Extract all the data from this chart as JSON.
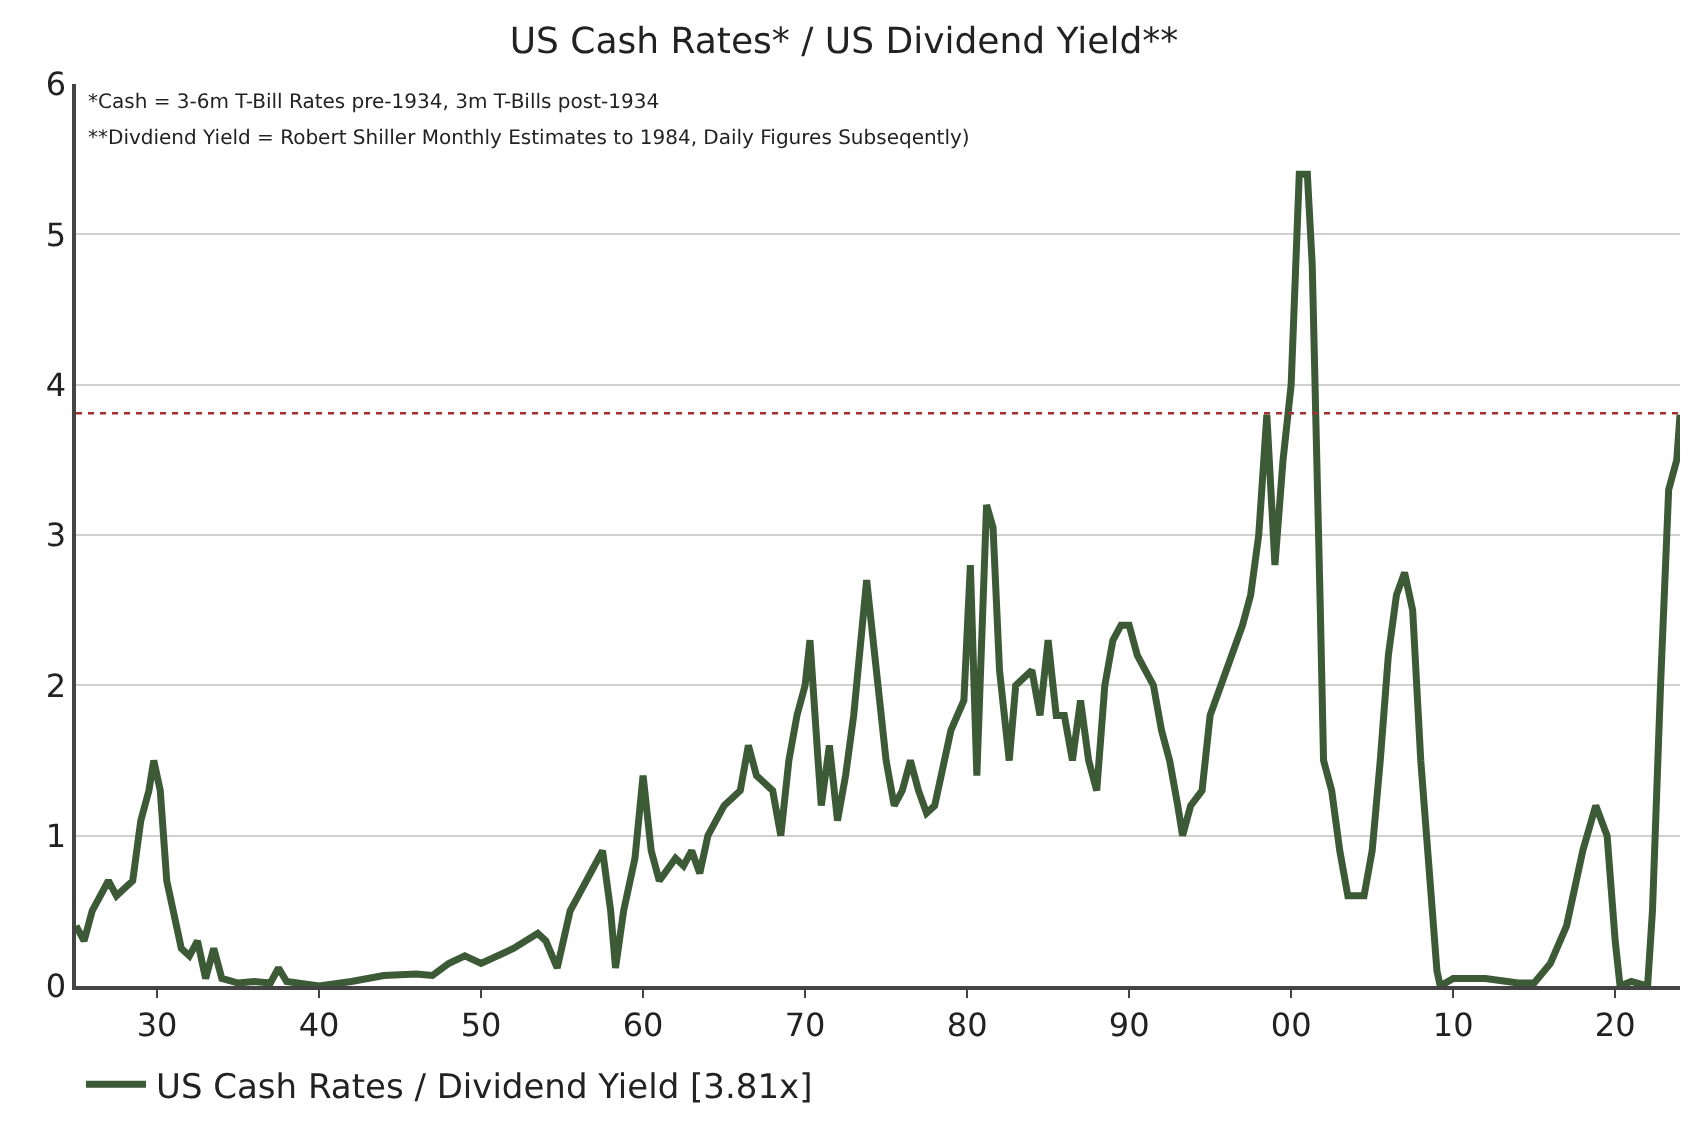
{
  "chart_data": {
    "type": "line",
    "title": "US Cash Rates* / US Dividend Yield**",
    "annotations": [
      "*Cash = 3-6m T-Bill Rates pre-1934, 3m T-Bills post-1934",
      "**Divdiend Yield = Robert Shiller Monthly Estimates to 1984, Daily Figures Subseqently)"
    ],
    "series": [
      {
        "name": "US Cash Rates / Dividend Yield [3.81x]",
        "color": "#3d5a36",
        "x": [
          1925,
          1925.5,
          1926,
          1927,
          1927.5,
          1928,
          1928.5,
          1929,
          1929.5,
          1929.8,
          1930.2,
          1930.6,
          1931,
          1931.5,
          1932,
          1932.5,
          1933,
          1933.5,
          1934,
          1935,
          1936,
          1937,
          1937.5,
          1938,
          1940,
          1942,
          1944,
          1946,
          1947,
          1948,
          1949,
          1950,
          1952,
          1953.5,
          1954,
          1954.7,
          1955.5,
          1956,
          1957,
          1957.5,
          1958,
          1958.3,
          1958.8,
          1959.5,
          1960,
          1960.5,
          1961,
          1962,
          1962.5,
          1963,
          1963.5,
          1964,
          1965,
          1966,
          1966.5,
          1967,
          1968,
          1968.5,
          1969,
          1969.5,
          1970,
          1970.3,
          1970.8,
          1971,
          1971.5,
          1972,
          1972.5,
          1973,
          1973.8,
          1974.3,
          1975,
          1975.5,
          1976,
          1976.5,
          1977,
          1977.5,
          1978,
          1979,
          1979.8,
          1980.2,
          1980.6,
          1981.2,
          1981.6,
          1982,
          1982.6,
          1983,
          1984,
          1984.5,
          1985,
          1985.5,
          1986,
          1986.5,
          1987,
          1987.5,
          1988,
          1988.5,
          1989,
          1989.5,
          1990,
          1990.5,
          1991,
          1991.5,
          1992,
          1992.5,
          1993,
          1993.3,
          1993.8,
          1994.5,
          1995,
          1996,
          1997,
          1997.5,
          1998,
          1998.5,
          1999,
          1999.5,
          2000,
          2000.5,
          2001,
          2001.3,
          2001.8,
          2002,
          2002.5,
          2003,
          2003.5,
          2004.5,
          2005,
          2005.5,
          2006,
          2006.5,
          2007,
          2007.5,
          2008,
          2008.5,
          2009,
          2009.2,
          2010,
          2012,
          2014,
          2015,
          2016,
          2017,
          2018,
          2018.8,
          2019.5,
          2020,
          2020.3,
          2021,
          2022,
          2022.3,
          2022.8,
          2023.3,
          2023.8,
          2024
        ],
        "values": [
          0.4,
          0.3,
          0.5,
          0.7,
          0.6,
          0.65,
          0.7,
          1.1,
          1.3,
          1.5,
          1.3,
          0.7,
          0.5,
          0.25,
          0.2,
          0.3,
          0.05,
          0.25,
          0.05,
          0.02,
          0.03,
          0.02,
          0.12,
          0.03,
          0.0,
          0.03,
          0.07,
          0.08,
          0.07,
          0.15,
          0.2,
          0.15,
          0.25,
          0.35,
          0.3,
          0.12,
          0.5,
          0.6,
          0.8,
          0.9,
          0.5,
          0.12,
          0.5,
          0.85,
          1.4,
          0.9,
          0.7,
          0.85,
          0.8,
          0.9,
          0.75,
          1.0,
          1.2,
          1.3,
          1.6,
          1.4,
          1.3,
          1.0,
          1.5,
          1.8,
          2.0,
          2.3,
          1.5,
          1.2,
          1.6,
          1.1,
          1.4,
          1.8,
          2.7,
          2.2,
          1.5,
          1.2,
          1.3,
          1.5,
          1.3,
          1.15,
          1.2,
          1.7,
          1.9,
          2.8,
          1.4,
          3.2,
          3.05,
          2.1,
          1.5,
          2.0,
          2.1,
          1.8,
          2.3,
          1.8,
          1.8,
          1.5,
          1.9,
          1.5,
          1.3,
          2.0,
          2.3,
          2.4,
          2.4,
          2.2,
          2.1,
          2.0,
          1.7,
          1.5,
          1.2,
          1.0,
          1.2,
          1.3,
          1.8,
          2.1,
          2.4,
          2.6,
          3.0,
          3.8,
          2.8,
          3.5,
          4.0,
          5.4,
          5.4,
          4.8,
          2.5,
          1.5,
          1.3,
          0.9,
          0.6,
          0.6,
          0.9,
          1.5,
          2.2,
          2.6,
          2.75,
          2.5,
          1.5,
          0.8,
          0.1,
          0.0,
          0.05,
          0.05,
          0.02,
          0.02,
          0.15,
          0.4,
          0.9,
          1.2,
          1.0,
          0.3,
          0.0,
          0.03,
          0.0,
          0.5,
          2.0,
          3.3,
          3.5,
          3.8
        ]
      }
    ],
    "ref_lines": [
      {
        "axis": "y",
        "value": 3.81,
        "color": "#a03030",
        "line_style": "dotted"
      }
    ],
    "xlim": [
      1925,
      2024
    ],
    "xticks": [
      {
        "value": 1930,
        "label": "30"
      },
      {
        "value": 1940,
        "label": "40"
      },
      {
        "value": 1950,
        "label": "50"
      },
      {
        "value": 1960,
        "label": "60"
      },
      {
        "value": 1970,
        "label": "70"
      },
      {
        "value": 1980,
        "label": "80"
      },
      {
        "value": 1990,
        "label": "90"
      },
      {
        "value": 2000,
        "label": "00"
      },
      {
        "value": 2010,
        "label": "10"
      },
      {
        "value": 2020,
        "label": "20"
      }
    ],
    "ylim": [
      0,
      6
    ],
    "yticks": [
      0,
      1,
      2,
      3,
      4,
      5,
      6
    ],
    "grid": "y",
    "legend": "bottom left",
    "marker": "none",
    "line_style": "solid"
  }
}
